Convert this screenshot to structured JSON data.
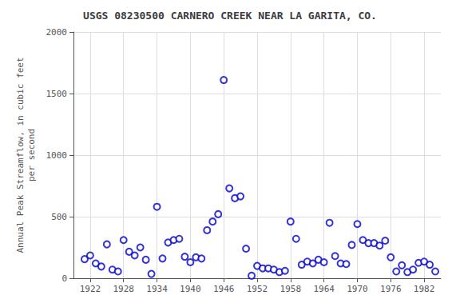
{
  "chart_data": {
    "type": "scatter",
    "title": "USGS 08230500 CARNERO CREEK NEAR LA GARITA, CO.",
    "ylabel": "Annual Peak Streamflow, in cubic feet\nper second",
    "x": [
      1921,
      1922,
      1923,
      1924,
      1925,
      1926,
      1927,
      1928,
      1929,
      1930,
      1931,
      1932,
      1933,
      1934,
      1935,
      1936,
      1937,
      1938,
      1939,
      1940,
      1941,
      1942,
      1943,
      1944,
      1945,
      1946,
      1947,
      1948,
      1949,
      1950,
      1951,
      1952,
      1953,
      1954,
      1955,
      1956,
      1957,
      1958,
      1959,
      1960,
      1961,
      1962,
      1963,
      1964,
      1965,
      1966,
      1967,
      1968,
      1969,
      1970,
      1971,
      1972,
      1973,
      1974,
      1975,
      1976,
      1977,
      1978,
      1979,
      1980,
      1981,
      1982,
      1983,
      1984
    ],
    "values": [
      155,
      185,
      120,
      95,
      275,
      70,
      55,
      310,
      215,
      185,
      250,
      150,
      35,
      580,
      160,
      290,
      310,
      320,
      175,
      130,
      170,
      160,
      390,
      460,
      520,
      1610,
      730,
      650,
      665,
      240,
      20,
      100,
      80,
      80,
      70,
      50,
      60,
      460,
      320,
      110,
      135,
      120,
      150,
      130,
      450,
      180,
      120,
      115,
      270,
      440,
      310,
      285,
      285,
      265,
      305,
      170,
      55,
      105,
      50,
      70,
      125,
      135,
      110,
      55
    ],
    "color": "#0000cc",
    "marker": "circle",
    "xlim": [
      1919,
      1985
    ],
    "xticks": [
      1922,
      1928,
      1934,
      1940,
      1946,
      1952,
      1958,
      1964,
      1970,
      1976,
      1982
    ],
    "ylim": [
      0,
      2000
    ],
    "yticks": [
      0,
      500,
      1000,
      1500,
      2000
    ],
    "grid": true
  }
}
